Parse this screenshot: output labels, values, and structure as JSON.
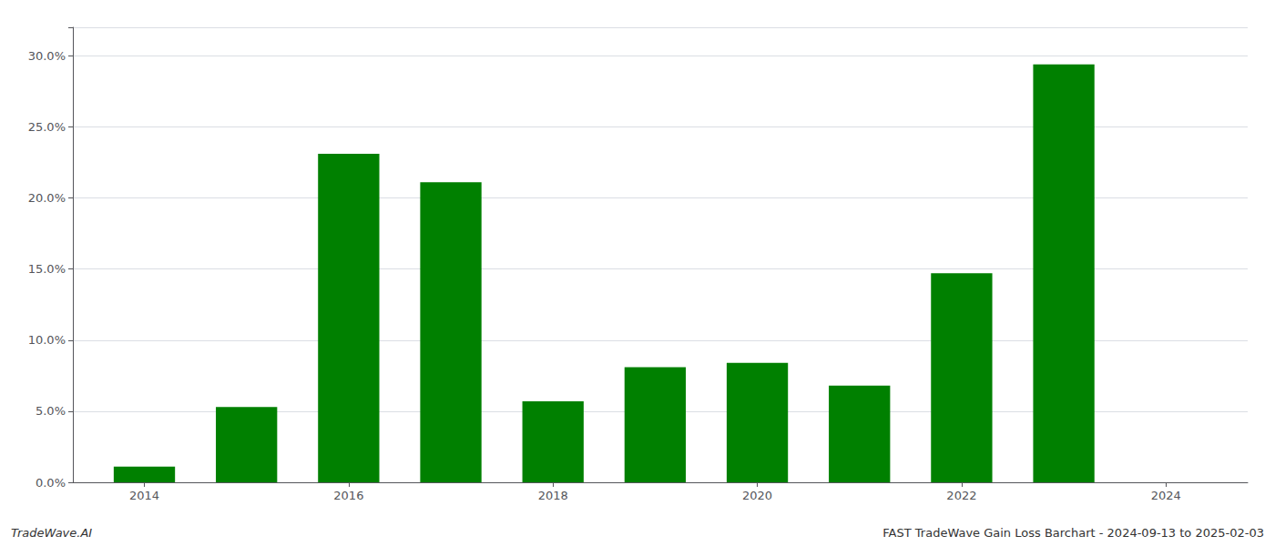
{
  "chart_data": {
    "type": "bar",
    "x": [
      2014,
      2015,
      2016,
      2017,
      2018,
      2019,
      2020,
      2021,
      2022,
      2023
    ],
    "values": [
      0.011,
      0.053,
      0.231,
      0.211,
      0.057,
      0.081,
      0.084,
      0.068,
      0.147,
      0.294
    ],
    "color": "#008000",
    "xlim": [
      2013.3,
      2024.8
    ],
    "xticks": [
      2014,
      2016,
      2018,
      2020,
      2022,
      2024
    ],
    "ylim": [
      0,
      0.32
    ],
    "yticks": [
      {
        "value": 0.0,
        "label": "0.0%"
      },
      {
        "value": 0.05,
        "label": "5.0%"
      },
      {
        "value": 0.1,
        "label": "10.0%"
      },
      {
        "value": 0.15,
        "label": "15.0%"
      },
      {
        "value": 0.2,
        "label": "20.0%"
      },
      {
        "value": 0.25,
        "label": "25.0%"
      },
      {
        "value": 0.3,
        "label": "30.0%"
      }
    ],
    "grid": true,
    "annotations": [
      "TradeWave.AI",
      "FAST TradeWave Gain Loss Barchart - 2024-09-13 to 2025-02-03"
    ]
  }
}
